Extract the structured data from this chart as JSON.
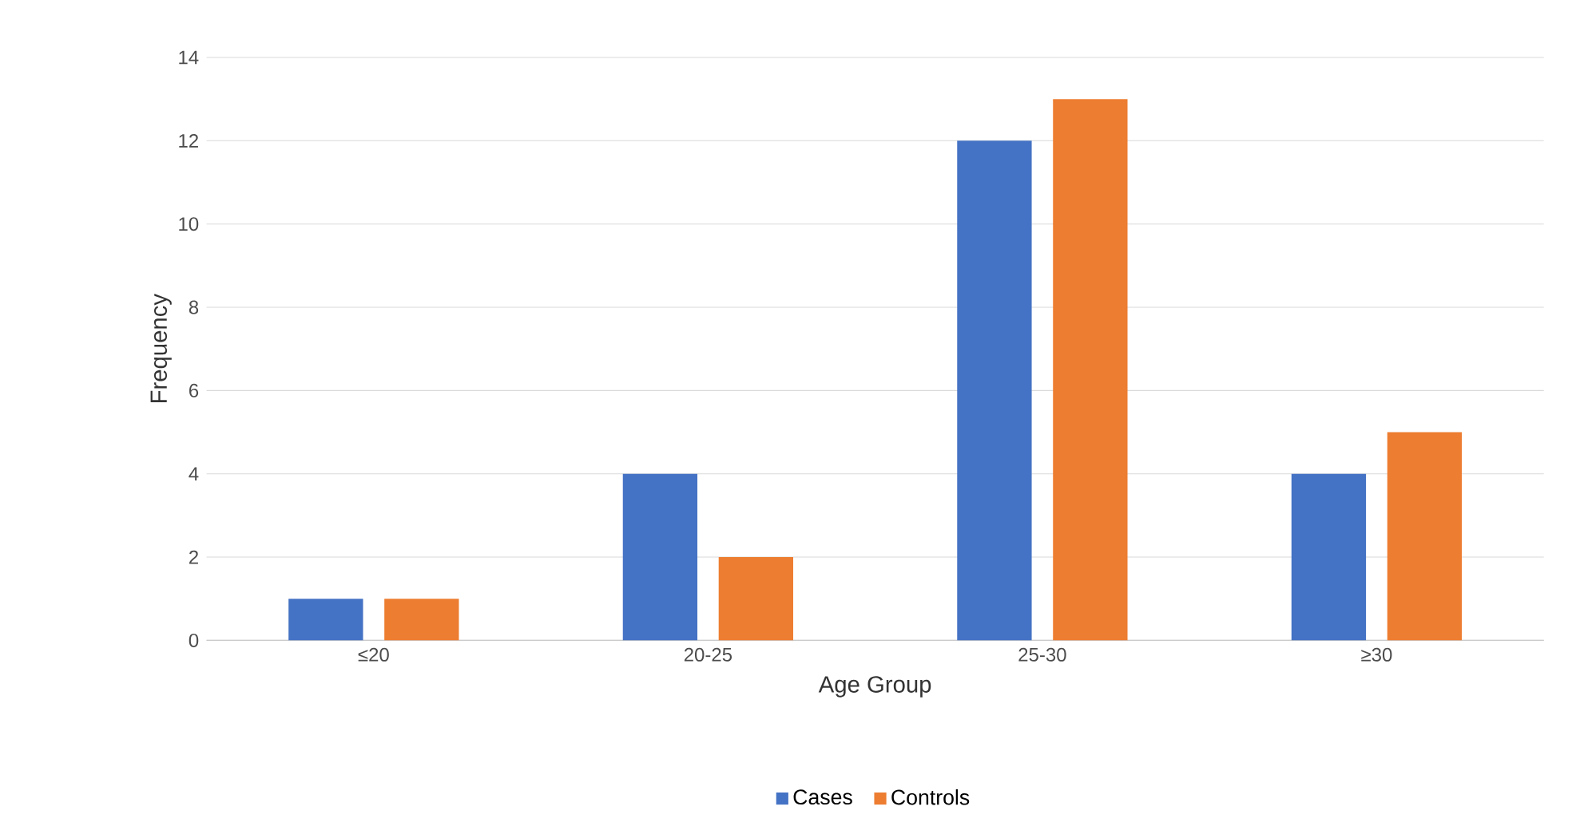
{
  "chart_data": {
    "type": "bar",
    "xlabel": "Age Group",
    "ylabel": "Frequency",
    "categories": [
      "≤20",
      "20-25",
      "25-30",
      "≥30"
    ],
    "series": [
      {
        "name": "Cases",
        "color": "#4472c4",
        "values": [
          1,
          4,
          12,
          4
        ]
      },
      {
        "name": "Controls",
        "color": "#ed7d31",
        "values": [
          1,
          2,
          13,
          5
        ]
      }
    ],
    "ylim": [
      0,
      14
    ],
    "yticks": [
      0,
      2,
      4,
      6,
      8,
      10,
      12,
      14
    ],
    "grid": "y",
    "legend": "bottom"
  }
}
